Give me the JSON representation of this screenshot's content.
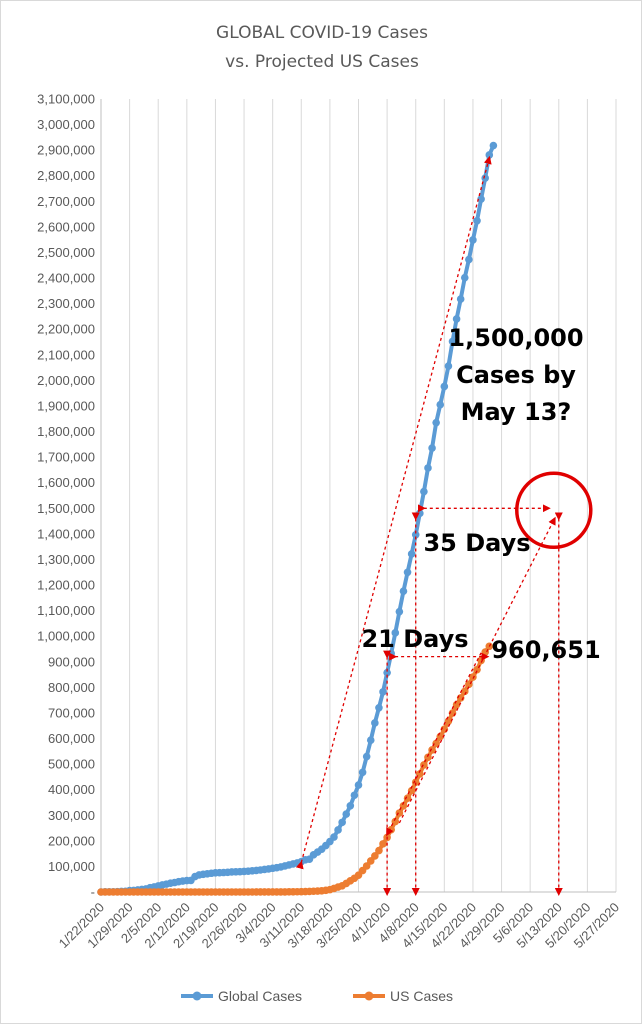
{
  "chart_data": {
    "type": "line",
    "title": [
      "GLOBAL COVID-19 Cases",
      "vs. Projected US Cases"
    ],
    "xlabel": "",
    "ylabel": "",
    "x_start": "2020-01-22",
    "x_ticks": [
      "1/22/2020",
      "1/29/2020",
      "2/5/2020",
      "2/12/2020",
      "2/19/2020",
      "2/26/2020",
      "3/4/2020",
      "3/11/2020",
      "3/18/2020",
      "3/25/2020",
      "4/1/2020",
      "4/8/2020",
      "4/15/2020",
      "4/22/2020",
      "4/29/2020",
      "5/6/2020",
      "5/13/2020",
      "5/20/2020",
      "5/27/2020"
    ],
    "ylim": [
      0,
      3100000
    ],
    "y_ticks": [
      "-",
      "100,000",
      "200,000",
      "300,000",
      "400,000",
      "500,000",
      "600,000",
      "700,000",
      "800,000",
      "900,000",
      "1,000,000",
      "1,100,000",
      "1,200,000",
      "1,300,000",
      "1,400,000",
      "1,500,000",
      "1,600,000",
      "1,700,000",
      "1,800,000",
      "1,900,000",
      "2,000,000",
      "2,100,000",
      "2,200,000",
      "2,300,000",
      "2,400,000",
      "2,500,000",
      "2,600,000",
      "2,700,000",
      "2,800,000",
      "2,900,000",
      "3,000,000",
      "3,100,000"
    ],
    "grid": "vertical",
    "legend": "bottom",
    "series": [
      {
        "name": "Global Cases",
        "color": "#5b9bd5",
        "start": "2020-01-22",
        "values": [
          0,
          555,
          654,
          941,
          1434,
          2118,
          2927,
          5578,
          6166,
          8234,
          9927,
          12038,
          16787,
          19881,
          23892,
          27635,
          30794,
          34391,
          37120,
          40150,
          42762,
          44802,
          45221,
          60368,
          66885,
          69030,
          71224,
          73258,
          75136,
          75639,
          76197,
          76819,
          78572,
          78958,
          79561,
          80406,
          81388,
          82746,
          84112,
          86011,
          88369,
          90306,
          92840,
          95120,
          97886,
          101801,
          105847,
          109821,
          113590,
          118620,
          125875,
          128352,
          145205,
          156101,
          167454,
          181574,
          197102,
          214821,
          242570,
          272208,
          304507,
          336953,
          378235,
          418045,
          467653,
          529591,
          593291,
          660706,
          720117,
          782365,
          857487,
          932605,
          1013157,
          1095917,
          1176060,
          1249754,
          1321481,
          1396476,
          1480200,
          1565278,
          1657526,
          1735650,
          1834721,
          1904838,
          1976191,
          2056054,
          2152437,
          2240190,
          2317759,
          2401379,
          2472259,
          2549123,
          2624000,
          2708885,
          2790986,
          2881140,
          2918000
        ]
      },
      {
        "name": "US Cases",
        "color": "#ed7d31",
        "start": "2020-01-22",
        "values": [
          1,
          1,
          2,
          2,
          5,
          5,
          5,
          5,
          5,
          6,
          8,
          8,
          11,
          11,
          11,
          12,
          12,
          12,
          12,
          12,
          13,
          13,
          15,
          15,
          15,
          15,
          15,
          15,
          15,
          15,
          15,
          15,
          15,
          25,
          25,
          30,
          40,
          45,
          60,
          70,
          100,
          124,
          158,
          221,
          319,
          435,
          541,
          704,
          994,
          1301,
          1697,
          2247,
          2943,
          3680,
          4663,
          6411,
          9259,
          13789,
          19383,
          24207,
          33546,
          43734,
          53740,
          65778,
          83836,
          101657,
          121465,
          140909,
          161831,
          188172,
          213372,
          243453,
          275586,
          308850,
          337072,
          366667,
          396223,
          429052,
          461437,
          496535,
          526396,
          555313,
          580619,
          607670,
          636350,
          667592,
          699706,
          732197,
          758809,
          784326,
          811865,
          840351,
          869170,
          905358,
          938154,
          960651
        ]
      }
    ],
    "annotations": {
      "projection_text": [
        "1,500,000",
        "Cases by",
        "May 13?"
      ],
      "days35": "35 Days",
      "days21": "21 Days",
      "us_value": "960,651"
    }
  }
}
